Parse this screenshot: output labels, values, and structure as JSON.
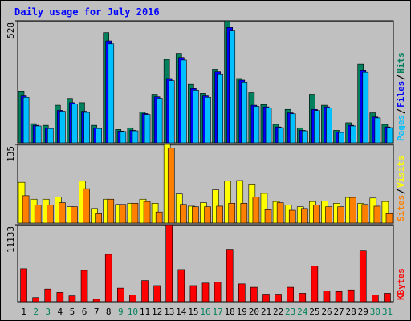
{
  "chart_data": [
    {
      "type": "bar",
      "title": "Daily usage for July 2016",
      "ylim": [
        0,
        528
      ],
      "yticks": [
        528
      ],
      "series": [
        {
          "name": "Hits",
          "color": "#00805c",
          "values": [
            221,
            83,
            76,
            163,
            192,
            174,
            76,
            477,
            58,
            65,
            134,
            210,
            361,
            387,
            253,
            214,
            318,
            528,
            278,
            217,
            166,
            80,
            145,
            65,
            210,
            163,
            54,
            87,
            340,
            130,
            80
          ]
        },
        {
          "name": "Files",
          "color": "#0000ff",
          "values": [
            203,
            76,
            65,
            141,
            174,
            137,
            65,
            441,
            51,
            54,
            127,
            199,
            278,
            369,
            235,
            203,
            307,
            499,
            271,
            163,
            156,
            69,
            130,
            54,
            145,
            156,
            47,
            76,
            315,
            112,
            69
          ]
        },
        {
          "name": "Pages",
          "color": "#00c0ff",
          "values": [
            197,
            73,
            62,
            137,
            169,
            132,
            62,
            428,
            49,
            52,
            123,
            193,
            269,
            358,
            228,
            197,
            298,
            484,
            263,
            158,
            151,
            66,
            126,
            52,
            140,
            151,
            45,
            73,
            305,
            108,
            66
          ]
        }
      ]
    },
    {
      "type": "bar",
      "ylim": [
        0,
        135
      ],
      "yticks": [
        135
      ],
      "series": [
        {
          "name": "Visits",
          "color": "#ffff00",
          "values": [
            70,
            41,
            41,
            45,
            28,
            72,
            25,
            41,
            32,
            34,
            41,
            34,
            135,
            50,
            29,
            35,
            57,
            72,
            73,
            67,
            51,
            37,
            31,
            28,
            37,
            38,
            34,
            44,
            34,
            43,
            37
          ]
        },
        {
          "name": "Sites",
          "color": "#ff8000",
          "values": [
            47,
            31,
            31,
            35,
            28,
            59,
            16,
            41,
            32,
            34,
            37,
            19,
            129,
            32,
            28,
            28,
            29,
            34,
            34,
            45,
            23,
            35,
            22,
            25,
            31,
            28,
            28,
            44,
            32,
            29,
            16
          ]
        }
      ]
    },
    {
      "type": "bar",
      "ylim": [
        0,
        11133
      ],
      "yticks": [
        11133
      ],
      "categories": [
        "1",
        "2",
        "3",
        "4",
        "5",
        "6",
        "7",
        "8",
        "9",
        "10",
        "11",
        "12",
        "13",
        "14",
        "15",
        "16",
        "17",
        "18",
        "19",
        "20",
        "21",
        "22",
        "23",
        "24",
        "25",
        "26",
        "27",
        "28",
        "29",
        "30",
        "31"
      ],
      "category_colors": [
        "#000000",
        "#00805c",
        "#00805c",
        "#000000",
        "#000000",
        "#000000",
        "#000000",
        "#000000",
        "#00805c",
        "#00805c",
        "#000000",
        "#000000",
        "#000000",
        "#000000",
        "#000000",
        "#00805c",
        "#00805c",
        "#000000",
        "#000000",
        "#000000",
        "#000000",
        "#000000",
        "#00805c",
        "#00805c",
        "#000000",
        "#000000",
        "#000000",
        "#000000",
        "#000000",
        "#00805c",
        "#00805c"
      ],
      "series": [
        {
          "name": "KBytes",
          "color": "#ff0000",
          "values": [
            4771,
            612,
            1835,
            1346,
            856,
            4526,
            367,
            6851,
            1957,
            979,
            3058,
            2324,
            11133,
            4649,
            2324,
            2691,
            2813,
            7585,
            2569,
            2080,
            1101,
            1101,
            2080,
            1223,
            5138,
            1590,
            1468,
            1713,
            7340,
            979,
            1223
          ]
        }
      ]
    }
  ]
}
